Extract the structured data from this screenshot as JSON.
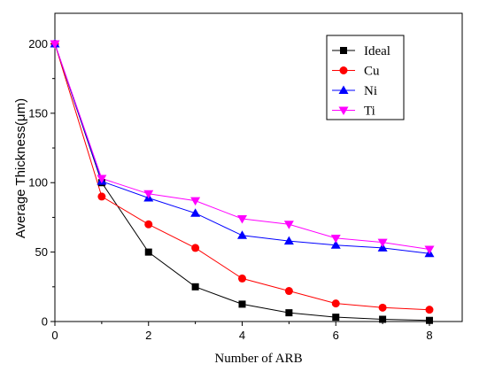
{
  "chart_data": {
    "type": "line",
    "xlabel": "Number of ARB",
    "ylabel": "Average Thickness(μm)",
    "x": [
      0,
      1,
      2,
      3,
      4,
      5,
      6,
      7,
      8
    ],
    "xlim": [
      0,
      8.7
    ],
    "ylim": [
      0,
      222
    ],
    "xticks": [
      0,
      2,
      4,
      6,
      8
    ],
    "yticks": [
      0,
      50,
      100,
      150,
      200
    ],
    "grid": false,
    "legend": "top-right",
    "series": [
      {
        "name": "Ideal",
        "values": [
          200,
          100,
          50,
          25,
          12.5,
          6.3,
          3.1,
          1.6,
          0.8
        ],
        "color": "#000000",
        "marker": "square"
      },
      {
        "name": "Cu",
        "values": [
          200,
          90,
          70,
          53,
          31,
          22,
          13,
          10,
          8.5
        ],
        "color": "#ff0000",
        "marker": "circle"
      },
      {
        "name": "Ni",
        "values": [
          200,
          101,
          89,
          78,
          62,
          58,
          55,
          53,
          49
        ],
        "color": "#0000ff",
        "marker": "triangle-up"
      },
      {
        "name": "Ti",
        "values": [
          200,
          103,
          92,
          87,
          74,
          70,
          60,
          57,
          52
        ],
        "color": "#ff00ff",
        "marker": "triangle-down"
      }
    ]
  }
}
